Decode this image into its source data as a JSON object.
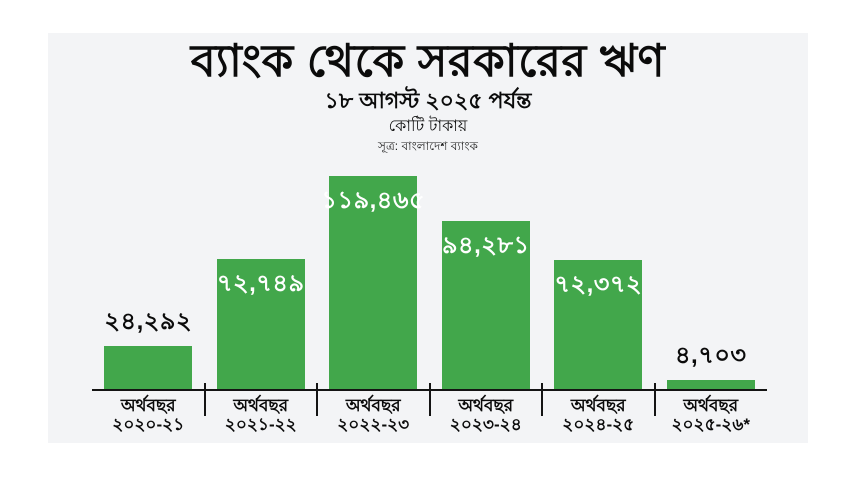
{
  "header": {
    "title": "ব্যাংক থেকে সরকারের ঋণ",
    "subtitle": "১৮ আগস্ট ২০২৫ পর্যন্ত",
    "unit_label": "কোটি টাকায়",
    "source": "সূত্র: বাংলাদেশ ব্যাংক"
  },
  "colors": {
    "bar": "#42a74b",
    "card_background": "#f3f4f6",
    "axis": "#141414",
    "text": "#0b0b0b",
    "value_label_inside": "#ffffff",
    "value_label_outside": "#0b0b0b"
  },
  "chart_data": {
    "type": "bar",
    "title": "ব্যাংক থেকে সরকারের ঋণ",
    "subtitle": "১৮ আগস্ট ২০২৫ পর্যন্ত",
    "unit": "কোটি টাকায়",
    "source": "সূত্র: বাংলাদেশ ব্যাংক",
    "xlabel": "",
    "ylabel": "",
    "ylim": [
      0,
      125000
    ],
    "grid": false,
    "legend": false,
    "categories": [
      "অর্থবছর ২০২০-২১",
      "অর্থবছর ২০২১-২২",
      "অর্থবছর ২০২২-২৩",
      "অর্থবছর ২০২৩-২৪",
      "অর্থবছর ২০২৪-২৫",
      "অর্থবছর ২০২৫-২৬*"
    ],
    "values": [
      24292,
      72749,
      119465,
      94281,
      72372,
      4703
    ],
    "bars": [
      {
        "category_line1": "অর্থবছর",
        "category_line2": "২০২০-২১",
        "value": 24292,
        "value_label": "২৪,২৯২",
        "label_position": "above"
      },
      {
        "category_line1": "অর্থবছর",
        "category_line2": "২০২১-২২",
        "value": 72749,
        "value_label": "৭২,৭৪৯",
        "label_position": "inside"
      },
      {
        "category_line1": "অর্থবছর",
        "category_line2": "২০২২-২৩",
        "value": 119465,
        "value_label": "১১৯,৪৬৫",
        "label_position": "inside"
      },
      {
        "category_line1": "অর্থবছর",
        "category_line2": "২০২৩-২৪",
        "value": 94281,
        "value_label": "৯৪,২৮১",
        "label_position": "inside"
      },
      {
        "category_line1": "অর্থবছর",
        "category_line2": "২০২৪-২৫",
        "value": 72372,
        "value_label": "৭২,৩৭২",
        "label_position": "inside"
      },
      {
        "category_line1": "অর্থবছর",
        "category_line2": "২০২৫-২৬*",
        "value": 4703,
        "value_label": "৪,৭০৩",
        "label_position": "above"
      }
    ]
  }
}
